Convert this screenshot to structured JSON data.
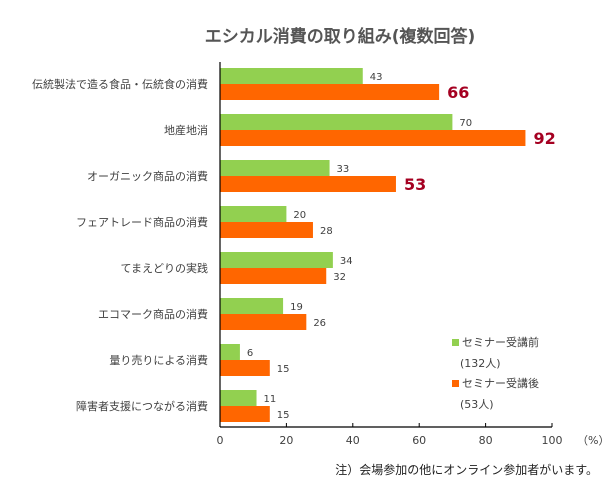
{
  "chart_data": {
    "type": "bar",
    "orientation": "horizontal",
    "title": "エシカル消費の取り組み(複数回答)",
    "categories": [
      "伝統製法で造る食品・伝統食の消費",
      "地産地消",
      "オーガニック商品の消費",
      "フェアトレード商品の消費",
      "てまえどりの実践",
      "エコマーク商品の消費",
      "量り売りによる消費",
      "障害者支援につながる消費"
    ],
    "series": [
      {
        "name": "セミナー受講前",
        "name_sub": "(132人)",
        "color": "#92d050",
        "values": [
          43,
          70,
          33,
          20,
          34,
          19,
          6,
          11
        ]
      },
      {
        "name": "セミナー受講後",
        "name_sub": "(53人)",
        "color": "#ff6600",
        "values": [
          66,
          92,
          53,
          28,
          32,
          26,
          15,
          15
        ],
        "highlighted": [
          true,
          true,
          true,
          false,
          false,
          false,
          false,
          false
        ]
      }
    ],
    "xlim": [
      0,
      100
    ],
    "xticks": [
      "0",
      "20",
      "40",
      "60",
      "80",
      "100"
    ],
    "xunit": "（%）",
    "highlight_color": "#a50021",
    "grid": false,
    "legend_position": "bottom-right"
  },
  "note": "注）会場参加の他にオンライン参加者がいます。"
}
